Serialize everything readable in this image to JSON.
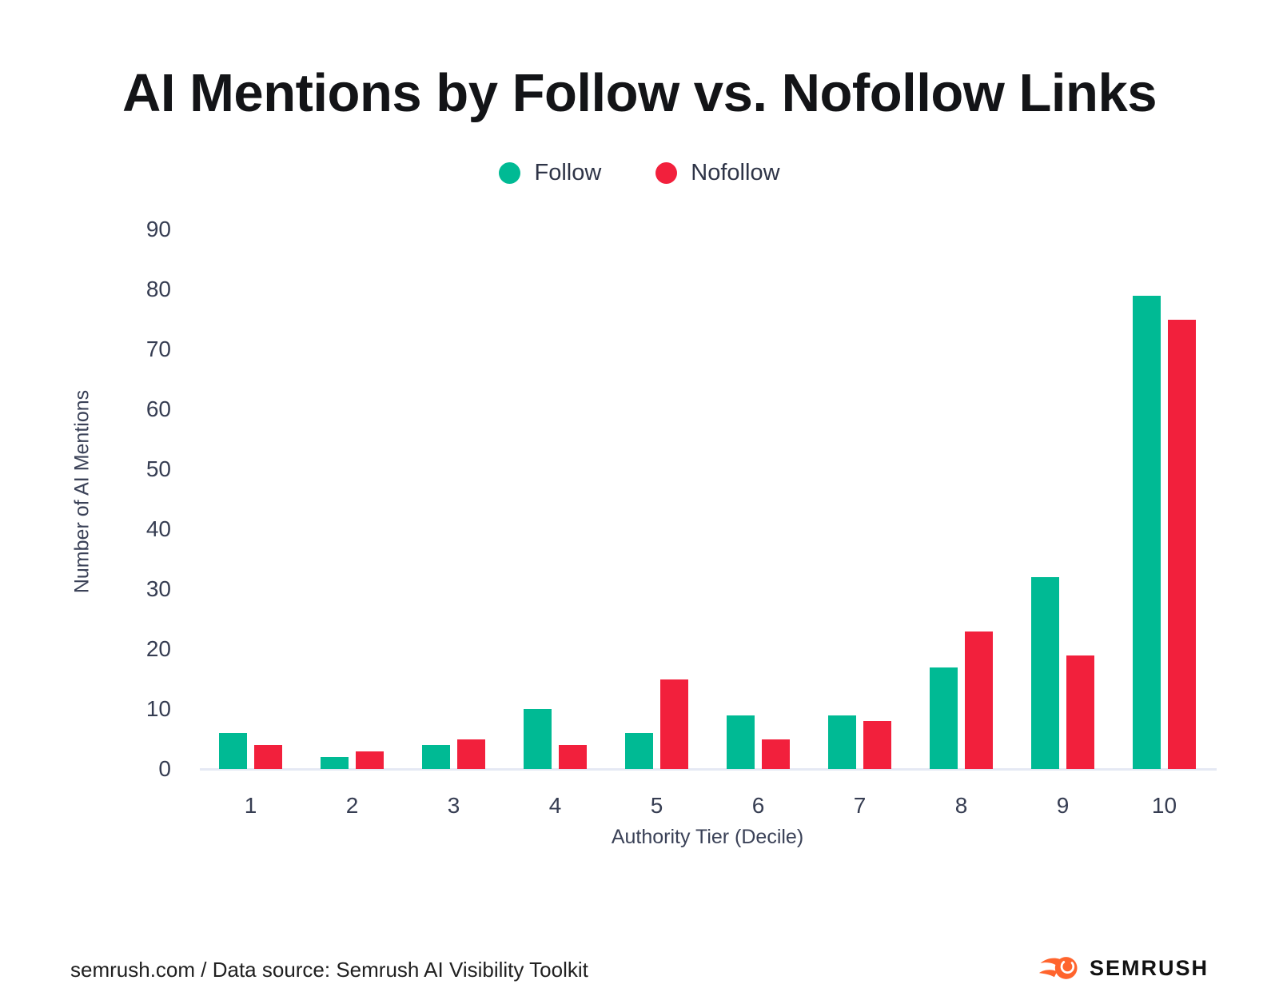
{
  "title": "AI Mentions by Follow vs. Nofollow Links",
  "legend": [
    {
      "label": "Follow",
      "color": "#00BA94"
    },
    {
      "label": "Nofollow",
      "color": "#F2203C"
    }
  ],
  "chart_data": {
    "type": "bar",
    "title": "AI Mentions by Follow vs. Nofollow Links",
    "categories": [
      "1",
      "2",
      "3",
      "4",
      "5",
      "6",
      "7",
      "8",
      "9",
      "10"
    ],
    "series": [
      {
        "name": "Follow",
        "color": "#00BA94",
        "values": [
          6,
          2,
          4,
          10,
          6,
          9,
          9,
          17,
          32,
          79
        ]
      },
      {
        "name": "Nofollow",
        "color": "#F2203C",
        "values": [
          4,
          3,
          5,
          4,
          15,
          5,
          8,
          23,
          19,
          75
        ]
      }
    ],
    "xlabel": "Authority Tier (Decile)",
    "ylabel": "Number of AI Mentions",
    "ylim": [
      0,
      90
    ],
    "yticks": [
      0,
      10,
      20,
      30,
      40,
      50,
      60,
      70,
      80,
      90
    ],
    "grid": false,
    "legend_position": "top"
  },
  "footer": {
    "source_text": "semrush.com / Data source: Semrush AI Visibility Toolkit",
    "brand": "SEMRUSH",
    "brand_color": "#FF642D"
  }
}
